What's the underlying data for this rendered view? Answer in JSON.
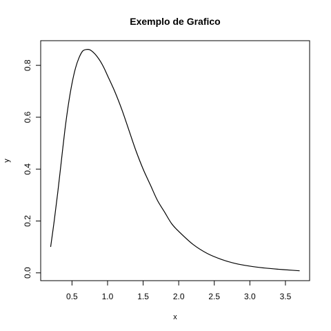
{
  "chart_data": {
    "type": "line",
    "title": "Exemplo de Grafico",
    "xlabel": "x",
    "ylabel": "y",
    "xlim": [
      0.06,
      3.84
    ],
    "ylim": [
      -0.03,
      0.895
    ],
    "x_ticks": [
      0.5,
      1.0,
      1.5,
      2.0,
      2.5,
      3.0,
      3.5
    ],
    "x_tick_labels": [
      "0.5",
      "1.0",
      "1.5",
      "2.0",
      "2.5",
      "3.0",
      "3.5"
    ],
    "y_ticks": [
      0.0,
      0.2,
      0.4,
      0.6,
      0.8
    ],
    "y_tick_labels": [
      "0.0",
      "0.2",
      "0.4",
      "0.6",
      "0.8"
    ],
    "grid": false,
    "series": [
      {
        "x": [
          0.2,
          0.25,
          0.3,
          0.35,
          0.4,
          0.45,
          0.5,
          0.55,
          0.6,
          0.65,
          0.7,
          0.75,
          0.8,
          0.85,
          0.9,
          0.95,
          1.0,
          1.1,
          1.2,
          1.3,
          1.4,
          1.5,
          1.6,
          1.7,
          1.8,
          1.9,
          2.0,
          2.2,
          2.4,
          2.6,
          2.8,
          3.0,
          3.2,
          3.4,
          3.6,
          3.7
        ],
        "y": [
          0.1,
          0.2,
          0.31,
          0.43,
          0.55,
          0.65,
          0.73,
          0.79,
          0.83,
          0.855,
          0.861,
          0.86,
          0.85,
          0.835,
          0.815,
          0.79,
          0.76,
          0.7,
          0.63,
          0.55,
          0.47,
          0.4,
          0.34,
          0.28,
          0.235,
          0.19,
          0.16,
          0.11,
          0.075,
          0.052,
          0.036,
          0.026,
          0.019,
          0.014,
          0.01,
          0.008
        ]
      }
    ]
  }
}
